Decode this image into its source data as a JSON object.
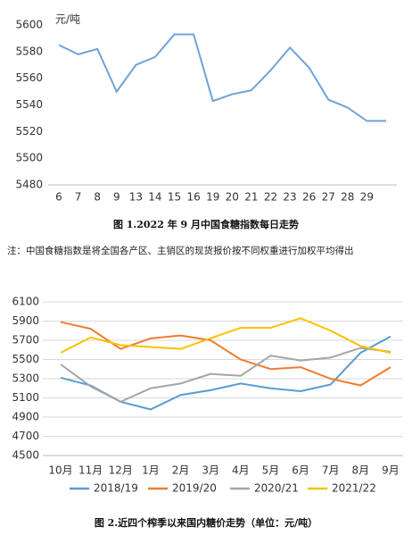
{
  "note": "注：中国食糖指数是将全国各产区、主销区的现货报价按不同权重进行加权平均得出",
  "chart_data": [
    {
      "type": "line",
      "title": "图 1.2022 年 9 月中国食糖指数每日走势",
      "y_label": "元/吨",
      "categories": [
        "6",
        "7",
        "8",
        "9",
        "13",
        "14",
        "15",
        "16",
        "19",
        "20",
        "21",
        "22",
        "23",
        "26",
        "27",
        "28",
        "29",
        null
      ],
      "series": [
        {
          "name": "中国食糖指数",
          "color": "#6fa3d8",
          "values": [
            5585,
            5578,
            5582,
            5550,
            5570,
            5576,
            5593,
            5593,
            5543,
            5548,
            5551,
            5566,
            5583,
            5568,
            5544,
            5538,
            5528,
            5528
          ]
        }
      ],
      "ylim": [
        5480,
        5600
      ],
      "yticks": [
        5480,
        5500,
        5520,
        5540,
        5560,
        5580,
        5600
      ],
      "grid": false,
      "legend": false
    },
    {
      "type": "line",
      "title": "图 2.近四个榨季以来国内糖价走势（单位：元/吨）",
      "categories": [
        "10月",
        "11月",
        "12月",
        "1月",
        "2月",
        "3月",
        "4月",
        "5月",
        "6月",
        "7月",
        "8月",
        "9月"
      ],
      "series": [
        {
          "name": "2018/19",
          "color": "#5b9bd5",
          "values": [
            5310,
            5230,
            5060,
            4980,
            5130,
            5180,
            5250,
            5200,
            5170,
            5240,
            5570,
            5740
          ]
        },
        {
          "name": "2019/20",
          "color": "#ed7d31",
          "values": [
            5890,
            5820,
            5610,
            5720,
            5750,
            5700,
            5500,
            5400,
            5420,
            5300,
            5230,
            5420
          ]
        },
        {
          "name": "2020/21",
          "color": "#a5a5a5",
          "values": [
            5450,
            5220,
            5060,
            5200,
            5250,
            5350,
            5330,
            5540,
            5490,
            5520,
            5620,
            5580
          ]
        },
        {
          "name": "2021/22",
          "color": "#ffc000",
          "values": [
            5570,
            5730,
            5650,
            5630,
            5610,
            5720,
            5830,
            5830,
            5930,
            5800,
            5640,
            5570
          ]
        }
      ],
      "ylim": [
        4500,
        6100
      ],
      "yticks": [
        4500,
        4700,
        4900,
        5100,
        5300,
        5500,
        5700,
        5900,
        6100
      ],
      "grid": true,
      "legend": "bottom"
    }
  ]
}
